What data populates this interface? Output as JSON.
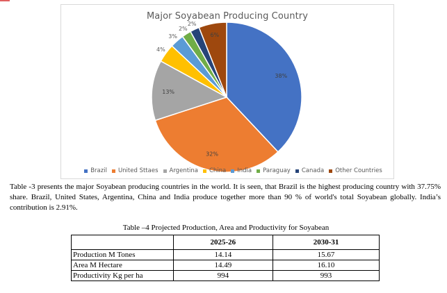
{
  "chart_data": {
    "type": "pie",
    "title": "Major Soyabean Producing Country",
    "categories": [
      "Brazil",
      "United Sttaes",
      "Argentina",
      "China",
      "India",
      "Paraguay",
      "Canada",
      "Other Countries"
    ],
    "values": [
      38,
      32,
      13,
      4,
      3,
      2,
      2,
      6
    ],
    "labels": [
      "38%",
      "32%",
      "13%",
      "4%",
      "3%",
      "2%",
      "2%",
      "6%"
    ],
    "colors": [
      "#4472c4",
      "#ed7d31",
      "#a5a5a5",
      "#ffc000",
      "#5b9bd5",
      "#70ad47",
      "#264478",
      "#9e480e"
    ],
    "legend_position": "bottom"
  },
  "paragraph": "Table -3 presents the major  Soyabean producing countries in the world. It is seen, that Brazil is the highest producing country with 37.75% share.  Brazil, United States, Argentina, China and India produce together more than 90 % of world's total Soyabean globally. India’s contribution is 2.91%.",
  "table": {
    "caption": "Table –4 Projected Production, Area and Productivity for Soyabean",
    "headers": [
      "",
      "2025-26",
      "2030-31"
    ],
    "rows": [
      {
        "label": "Production M Tones",
        "a": "14.14",
        "b": "15.67"
      },
      {
        "label": "Area M Hectare",
        "a": "14.49",
        "b": "16.10"
      },
      {
        "label": "Productivity Kg per ha",
        "a": "994",
        "b": "993"
      }
    ]
  }
}
